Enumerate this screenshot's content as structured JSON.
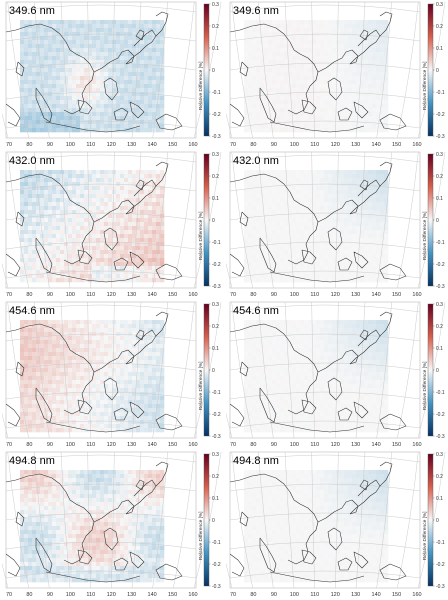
{
  "figure": {
    "x_tick_labels": [
      "70",
      "80",
      "90",
      "100",
      "110",
      "120",
      "130",
      "140",
      "150",
      "160"
    ],
    "colorbar": {
      "label": "Relative Difference [%]",
      "range": [
        -0.3,
        0.3
      ],
      "tick_labels": [
        "0.3",
        "0.2",
        "0.1",
        "0",
        "-0.1",
        "-0.2",
        "-0.3"
      ],
      "colors": [
        "#67001f",
        "#d6604d",
        "#f7f7f7",
        "#4393c3",
        "#053061"
      ]
    }
  },
  "panels": [
    {
      "wavelength": "349.6 nm",
      "pattern": "uniform-light-blue-with-light-orange-center",
      "strength": 0.65
    },
    {
      "wavelength": "349.6 nm",
      "pattern": "near-zero-faint-blue-northeast",
      "strength": 0.25
    },
    {
      "wavelength": "432.0 nm",
      "pattern": "orange-east-and-south-blue-northwest",
      "strength": 0.85
    },
    {
      "wavelength": "432.0 nm",
      "pattern": "near-zero-light-blue-northeast",
      "strength": 0.3
    },
    {
      "wavelength": "454.6 nm",
      "pattern": "orange-west-light-blue-east",
      "strength": 0.6
    },
    {
      "wavelength": "454.6 nm",
      "pattern": "near-zero-light-blue-northeast",
      "strength": 0.3
    },
    {
      "wavelength": "494.8 nm",
      "pattern": "mixed-orange-and-blue",
      "strength": 0.7
    },
    {
      "wavelength": "494.8 nm",
      "pattern": "near-zero-light-blue-northeast",
      "strength": 0.3
    }
  ]
}
